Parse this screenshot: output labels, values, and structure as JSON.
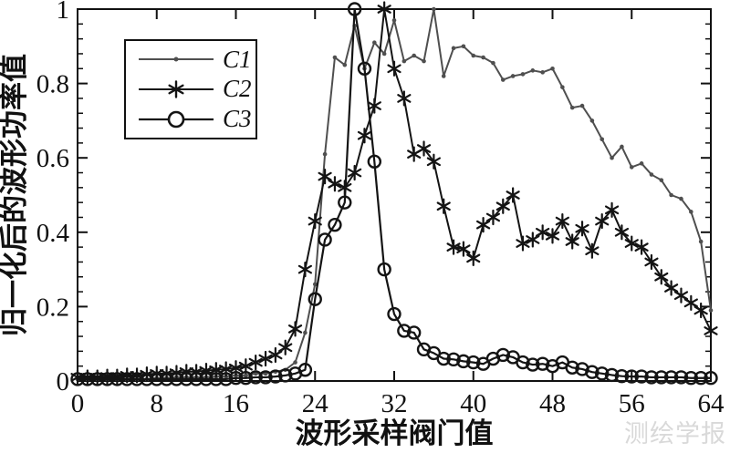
{
  "figure": {
    "watermark": "测绘学报"
  },
  "chart_data": {
    "type": "line",
    "title": "",
    "xlabel": "波形采样阀门值",
    "ylabel": "归一化后的波形功率值",
    "xlim": [
      0,
      64
    ],
    "ylim": [
      0,
      1
    ],
    "x_ticks": [
      0,
      8,
      16,
      24,
      32,
      40,
      48,
      56,
      64
    ],
    "y_ticks": [
      "0",
      "0.2",
      "0.4",
      "0.6",
      "0.8",
      "1"
    ],
    "y_tick_values": [
      0,
      0.2,
      0.4,
      0.6,
      0.8,
      1
    ],
    "y_minor_step": 0.04,
    "grid": false,
    "legend_position": "upper-left-inside",
    "x": [
      0,
      1,
      2,
      3,
      4,
      5,
      6,
      7,
      8,
      9,
      10,
      11,
      12,
      13,
      14,
      15,
      16,
      17,
      18,
      19,
      20,
      21,
      22,
      23,
      24,
      25,
      26,
      27,
      28,
      29,
      30,
      31,
      32,
      33,
      34,
      35,
      36,
      37,
      38,
      39,
      40,
      41,
      42,
      43,
      44,
      45,
      46,
      47,
      48,
      49,
      50,
      51,
      52,
      53,
      54,
      55,
      56,
      57,
      58,
      59,
      60,
      61,
      62,
      63,
      64
    ],
    "series": [
      {
        "name": "C1",
        "marker": "dot",
        "color": "#4f4f4f",
        "line_width": 2,
        "values": [
          0.005,
          0.005,
          0.005,
          0.005,
          0.005,
          0.005,
          0.005,
          0.005,
          0.008,
          0.008,
          0.01,
          0.01,
          0.01,
          0.01,
          0.012,
          0.012,
          0.015,
          0.015,
          0.02,
          0.02,
          0.025,
          0.03,
          0.05,
          0.13,
          0.26,
          0.61,
          0.87,
          0.85,
          0.955,
          0.84,
          0.91,
          0.88,
          0.97,
          0.86,
          0.875,
          0.86,
          1.0,
          0.82,
          0.895,
          0.9,
          0.875,
          0.87,
          0.855,
          0.81,
          0.82,
          0.825,
          0.835,
          0.83,
          0.84,
          0.79,
          0.735,
          0.74,
          0.7,
          0.65,
          0.6,
          0.63,
          0.575,
          0.585,
          0.555,
          0.54,
          0.5,
          0.49,
          0.455,
          0.375,
          0.19
        ]
      },
      {
        "name": "C2",
        "marker": "asterisk",
        "color": "#141414",
        "line_width": 2,
        "values": [
          0.01,
          0.01,
          0.01,
          0.012,
          0.012,
          0.015,
          0.015,
          0.018,
          0.02,
          0.02,
          0.022,
          0.025,
          0.025,
          0.028,
          0.03,
          0.032,
          0.035,
          0.04,
          0.05,
          0.06,
          0.07,
          0.09,
          0.14,
          0.3,
          0.43,
          0.55,
          0.53,
          0.52,
          0.56,
          0.66,
          0.74,
          1.0,
          0.84,
          0.76,
          0.61,
          0.625,
          0.59,
          0.47,
          0.36,
          0.355,
          0.33,
          0.42,
          0.44,
          0.47,
          0.5,
          0.37,
          0.38,
          0.4,
          0.39,
          0.43,
          0.375,
          0.41,
          0.35,
          0.43,
          0.46,
          0.4,
          0.37,
          0.36,
          0.32,
          0.28,
          0.25,
          0.23,
          0.21,
          0.19,
          0.135
        ]
      },
      {
        "name": "C3",
        "marker": "circle",
        "color": "#141414",
        "line_width": 2.2,
        "values": [
          0.005,
          0.005,
          0.005,
          0.005,
          0.005,
          0.005,
          0.005,
          0.005,
          0.005,
          0.005,
          0.005,
          0.005,
          0.005,
          0.005,
          0.005,
          0.005,
          0.008,
          0.008,
          0.01,
          0.01,
          0.012,
          0.015,
          0.02,
          0.03,
          0.22,
          0.38,
          0.42,
          0.48,
          1.0,
          0.84,
          0.59,
          0.3,
          0.18,
          0.135,
          0.13,
          0.085,
          0.075,
          0.06,
          0.058,
          0.053,
          0.05,
          0.046,
          0.06,
          0.07,
          0.064,
          0.05,
          0.044,
          0.046,
          0.04,
          0.05,
          0.036,
          0.032,
          0.024,
          0.02,
          0.016,
          0.013,
          0.012,
          0.012,
          0.01,
          0.01,
          0.01,
          0.01,
          0.008,
          0.008,
          0.008
        ]
      }
    ]
  }
}
